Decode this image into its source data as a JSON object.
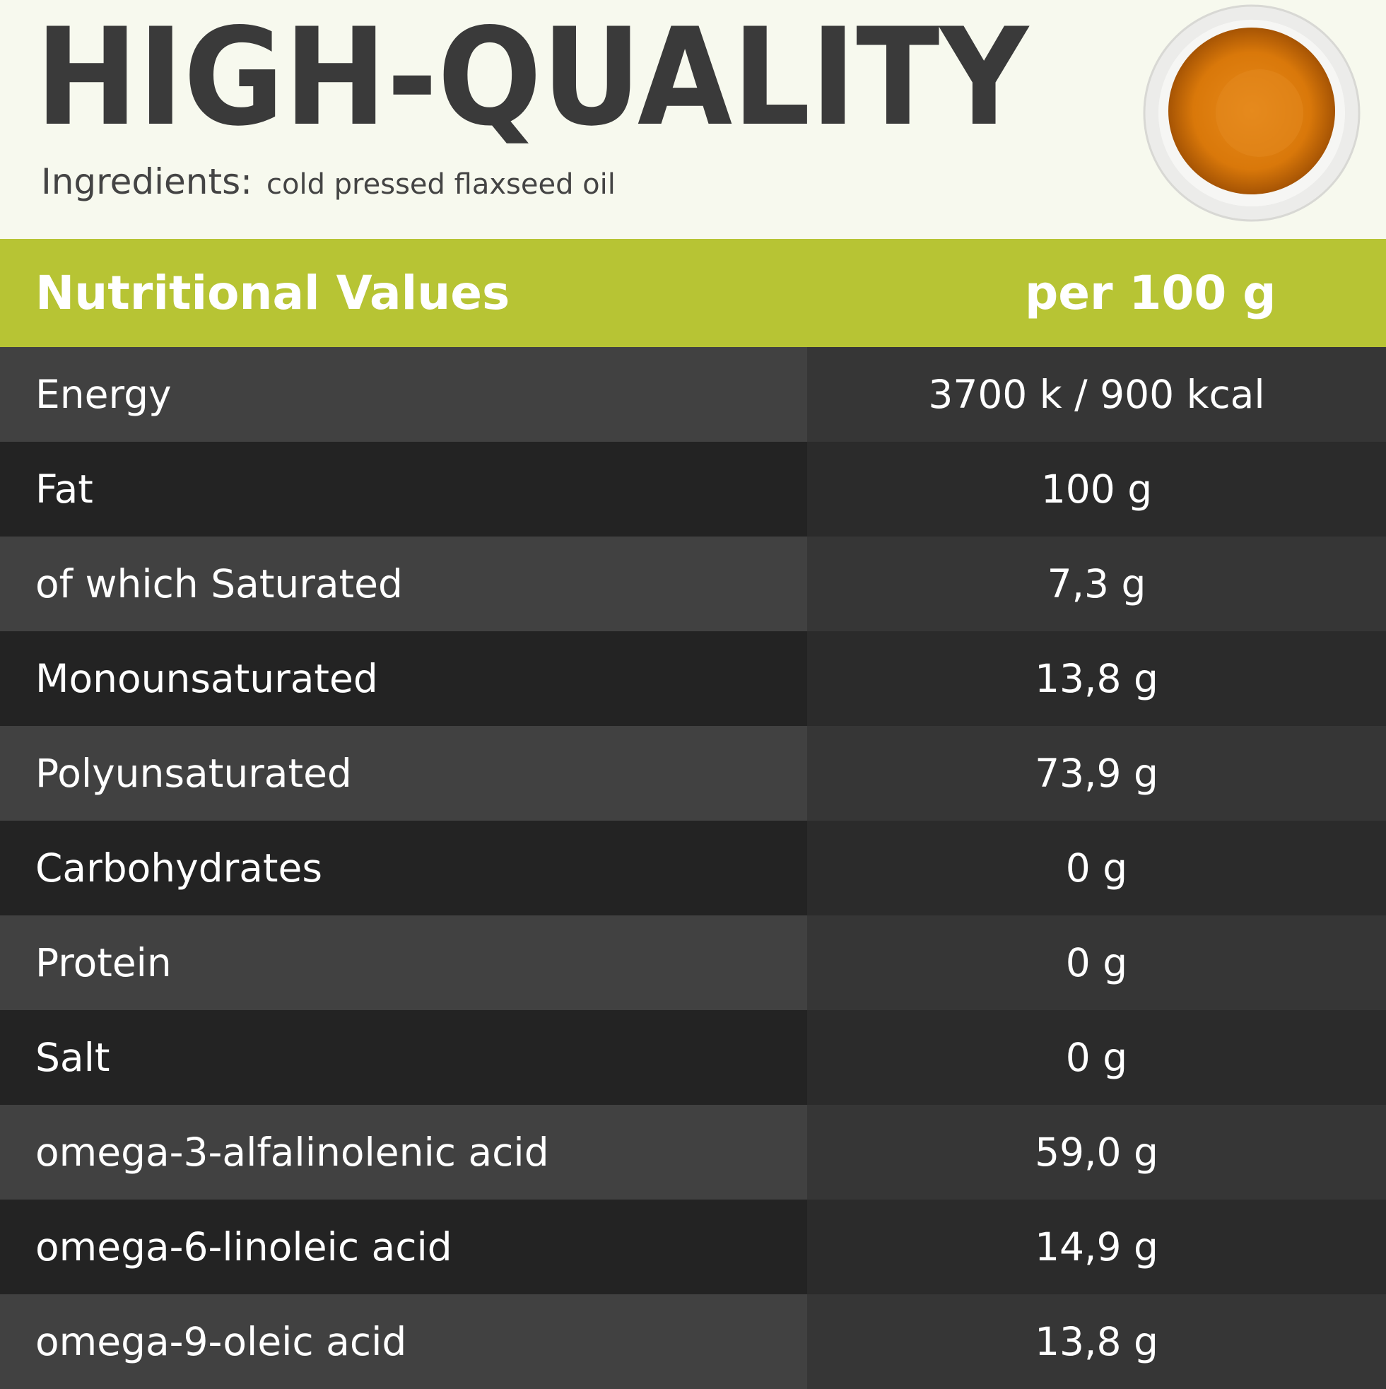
{
  "header": {
    "title": "HIGH-QUALITY",
    "ingredients_label": "Ingredients:",
    "ingredients": "cold pressed flaxseed oil"
  },
  "table": {
    "header": [
      "Nutritional Values",
      "per 100 g"
    ],
    "rows": [
      [
        "Energy",
        "3700 k / 900 kcal"
      ],
      [
        "Fat",
        "100 g"
      ],
      [
        "of which Saturated",
        "7,3 g"
      ],
      [
        "Monounsaturated",
        "13,8 g"
      ],
      [
        "Polyunsaturated",
        "73,9 g"
      ],
      [
        "Carbohydrates",
        "0 g"
      ],
      [
        "Protein",
        "0 g"
      ],
      [
        "Salt",
        "0 g"
      ],
      [
        "omega-3-alfalinolenic acid",
        "59,0 g"
      ],
      [
        "omega-6-linoleic acid",
        "14,9 g"
      ],
      [
        "omega-9-oleic acid",
        "13,8 g"
      ]
    ]
  }
}
